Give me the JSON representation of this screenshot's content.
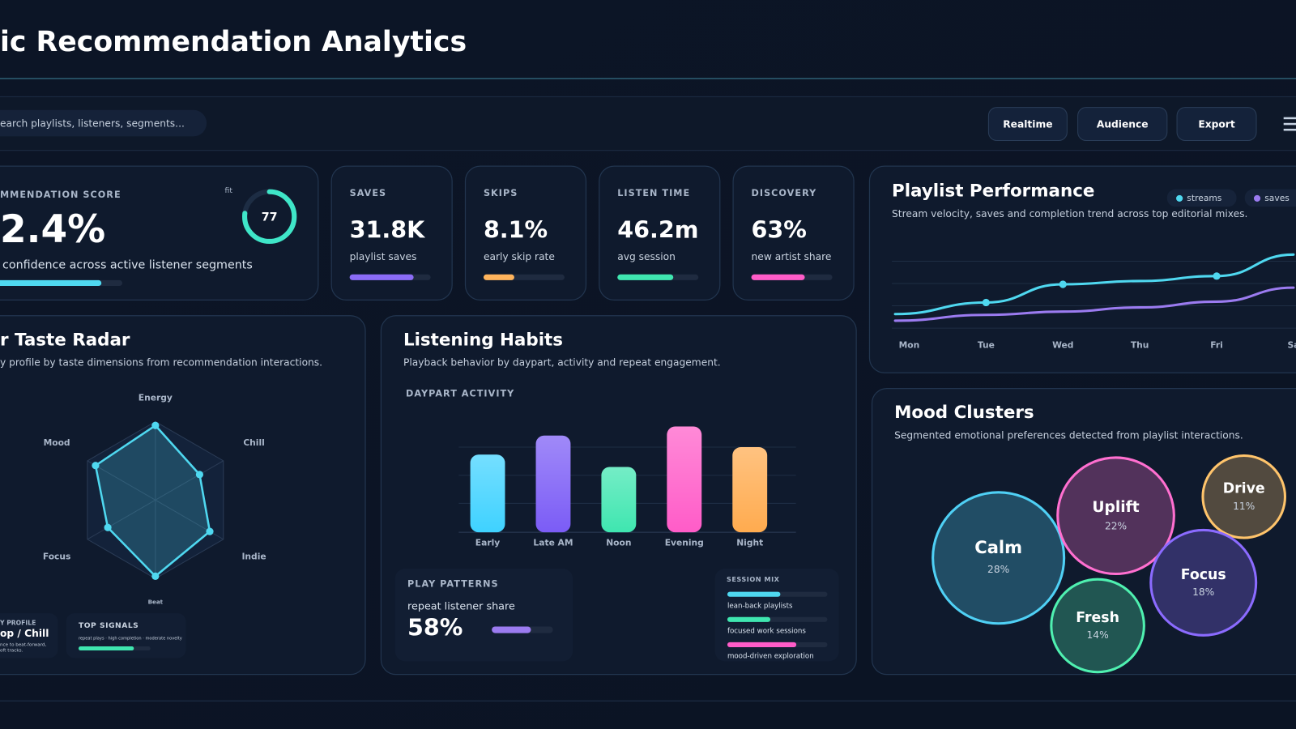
{
  "header": {
    "title": "ic Recommendation Analytics"
  },
  "toolbar": {
    "search": "earch playlists, listeners, segments...",
    "buttons": [
      "Realtime",
      "Audience",
      "Export"
    ]
  },
  "score": {
    "label": "MMENDATION SCORE",
    "fit": "fit",
    "gauge": 77,
    "value": "2.4%",
    "caption": "confidence across active listener segments",
    "progress": 84
  },
  "kpis": [
    {
      "label": "SAVES",
      "value": "31.8K",
      "caption": "playlist saves",
      "progress": 79,
      "color": "#8b6cf6"
    },
    {
      "label": "SKIPS",
      "value": "8.1%",
      "caption": "early skip rate",
      "progress": 38,
      "color": "#ffb45c"
    },
    {
      "label": "LISTEN TIME",
      "value": "46.2m",
      "caption": "avg session",
      "progress": 69,
      "color": "#3fe6b0"
    },
    {
      "label": "DISCOVERY",
      "value": "63%",
      "caption": "new artist share",
      "progress": 66,
      "color": "#ff5cc8"
    }
  ],
  "radar_cards": {
    "profile": {
      "label": "Y PROFILE",
      "value": "op / Chill",
      "note": [
        "nce to beat-forward,",
        "oft tracks."
      ]
    },
    "signals": {
      "label": "TOP SIGNALS",
      "note": "repeat plays · high completion · moderate novelty",
      "progress": 77
    }
  },
  "play_patterns": {
    "label": "PLAY PATTERNS",
    "caption": "repeat listener share",
    "value": "58%",
    "progress": 64
  },
  "session_mix": {
    "label": "SESSION MIX",
    "items": [
      {
        "name": "lean-back playlists",
        "progress": 53,
        "color": "#4fd8f0"
      },
      {
        "name": "focused work sessions",
        "progress": 43,
        "color": "#3fe6b0"
      },
      {
        "name": "mood-driven exploration",
        "progress": 69,
        "color": "#ff5cc8"
      }
    ]
  },
  "chart_data": [
    {
      "type": "line",
      "title": "Playlist Performance",
      "subtitle": "Stream velocity, saves and completion trend across top editorial mixes.",
      "categories": [
        "Mon",
        "Tue",
        "Wed",
        "Thu",
        "Fri",
        "Sa"
      ],
      "ylim": [
        0,
        100
      ],
      "series": [
        {
          "name": "streams",
          "color": "#4fd8f0",
          "values": [
            20,
            34,
            56,
            60,
            66,
            92
          ]
        },
        {
          "name": "saves",
          "color": "#9b7bf0",
          "values": [
            12,
            19,
            23,
            28,
            35,
            52
          ]
        }
      ]
    },
    {
      "type": "radar",
      "title": "r Taste Radar",
      "subtitle": "y profile by taste dimensions from recommendation interactions.",
      "categories": [
        "Energy",
        "Chill",
        "Indie",
        "Beat",
        "Focus",
        "Mood"
      ],
      "values": [
        95,
        65,
        80,
        97,
        70,
        88
      ],
      "ylim": [
        0,
        100
      ],
      "color": "#4fd8f0"
    },
    {
      "type": "bar",
      "title": "Listening Habits",
      "subtitle": "Playback behavior by daypart, activity and repeat engagement.",
      "section": "DAYPART ACTIVITY",
      "categories": [
        "Early",
        "Late AM",
        "Noon",
        "Evening",
        "Night"
      ],
      "values": [
        94,
        117,
        79,
        128,
        103
      ],
      "ylim": [
        0,
        140
      ],
      "colors": [
        "#3fd2ff",
        "#7b5cf6",
        "#3fe6b0",
        "#ff5cc8",
        "#ffab4f"
      ]
    },
    {
      "type": "bubble",
      "title": "Mood Clusters",
      "subtitle": "Segmented emotional preferences detected from playlist interactions.",
      "categories": [
        "Calm",
        "Uplift",
        "Drive",
        "Focus",
        "Fresh"
      ],
      "values": [
        28,
        22,
        11,
        18,
        14
      ],
      "value_labels": [
        "28%",
        "22%",
        "11%",
        "18%",
        "14%"
      ],
      "colors": [
        "#4fd0f5",
        "#ff6fd0",
        "#ffc46b",
        "#8b6bff",
        "#4ff0b0"
      ]
    }
  ]
}
